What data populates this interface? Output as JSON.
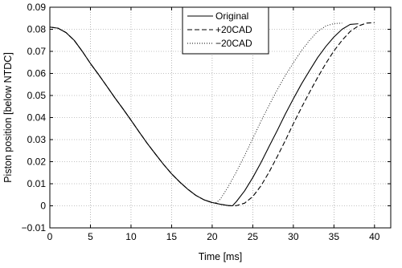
{
  "chart_data": {
    "type": "line",
    "title": "",
    "xlabel": "Time [ms]",
    "ylabel": "Piston position [below NTDC]",
    "xlim": [
      0,
      42
    ],
    "ylim": [
      -0.01,
      0.09
    ],
    "xticks": [
      0,
      5,
      10,
      15,
      20,
      25,
      30,
      35,
      40
    ],
    "yticks": [
      -0.01,
      0,
      0.01,
      0.02,
      0.03,
      0.04,
      0.05,
      0.06,
      0.07,
      0.08,
      0.09
    ],
    "xtick_labels": [
      "0",
      "5",
      "10",
      "15",
      "20",
      "25",
      "30",
      "35",
      "40"
    ],
    "ytick_labels": [
      "−0.01",
      "0",
      "0.01",
      "0.02",
      "0.03",
      "0.04",
      "0.05",
      "0.06",
      "0.07",
      "0.08",
      "0.09"
    ],
    "grid": true,
    "legend_position": "top-center",
    "series": [
      {
        "name": "Original",
        "style": "solid",
        "color": "#000000",
        "x": [
          0,
          1,
          2,
          3,
          4,
          5,
          6,
          7,
          8,
          9,
          10,
          11,
          12,
          13,
          14,
          15,
          16,
          17,
          18,
          19,
          20,
          21,
          22,
          22.5,
          23,
          24,
          25,
          26,
          27,
          28,
          29,
          30,
          31,
          32,
          33,
          34,
          35,
          36,
          37,
          38
        ],
        "y": [
          0.081,
          0.0805,
          0.0785,
          0.075,
          0.07,
          0.0645,
          0.0595,
          0.0543,
          0.049,
          0.044,
          0.0388,
          0.0335,
          0.0283,
          0.0235,
          0.0188,
          0.0145,
          0.0108,
          0.0075,
          0.0047,
          0.0027,
          0.0015,
          0.0007,
          0.0001,
          0.0,
          0.002,
          0.0068,
          0.0128,
          0.0195,
          0.0268,
          0.034,
          0.0415,
          0.0485,
          0.0552,
          0.0613,
          0.0672,
          0.0722,
          0.0765,
          0.08,
          0.0822,
          0.0825
        ]
      },
      {
        "name": "+20CAD",
        "style": "dashed",
        "color": "#000000",
        "x": [
          0,
          1,
          2,
          3,
          4,
          5,
          6,
          7,
          8,
          9,
          10,
          11,
          12,
          13,
          14,
          15,
          16,
          17,
          18,
          19,
          20,
          21,
          22,
          22.5,
          23,
          24,
          25,
          26,
          27,
          28,
          29,
          30,
          31,
          32,
          33,
          34,
          35,
          36,
          37,
          38,
          39,
          40
        ],
        "y": [
          0.081,
          0.0805,
          0.0785,
          0.075,
          0.07,
          0.0645,
          0.0595,
          0.0543,
          0.049,
          0.044,
          0.0388,
          0.0335,
          0.0283,
          0.0235,
          0.0188,
          0.0145,
          0.0108,
          0.0075,
          0.0047,
          0.0027,
          0.0015,
          0.0007,
          0.0001,
          0.0,
          0.0001,
          0.0012,
          0.0042,
          0.009,
          0.0152,
          0.0222,
          0.0295,
          0.0372,
          0.0445,
          0.0515,
          0.0582,
          0.0645,
          0.0702,
          0.075,
          0.079,
          0.0815,
          0.0828,
          0.083
        ]
      },
      {
        "name": "−20CAD",
        "style": "dotted",
        "color": "#000000",
        "x": [
          0,
          1,
          2,
          3,
          4,
          5,
          6,
          7,
          8,
          9,
          10,
          11,
          12,
          13,
          14,
          15,
          16,
          17,
          18,
          19,
          20,
          20.5,
          21,
          22,
          23,
          24,
          25,
          26,
          27,
          28,
          29,
          30,
          31,
          32,
          33,
          34,
          35,
          36
        ],
        "y": [
          0.081,
          0.0805,
          0.0785,
          0.075,
          0.07,
          0.0645,
          0.0595,
          0.0543,
          0.049,
          0.044,
          0.0388,
          0.0335,
          0.0283,
          0.0235,
          0.0188,
          0.0145,
          0.0108,
          0.0075,
          0.0047,
          0.0027,
          0.0012,
          0.0014,
          0.003,
          0.0088,
          0.0155,
          0.0228,
          0.0305,
          0.0382,
          0.0455,
          0.0525,
          0.059,
          0.0648,
          0.0703,
          0.075,
          0.079,
          0.0815,
          0.0826,
          0.0828
        ]
      }
    ]
  }
}
